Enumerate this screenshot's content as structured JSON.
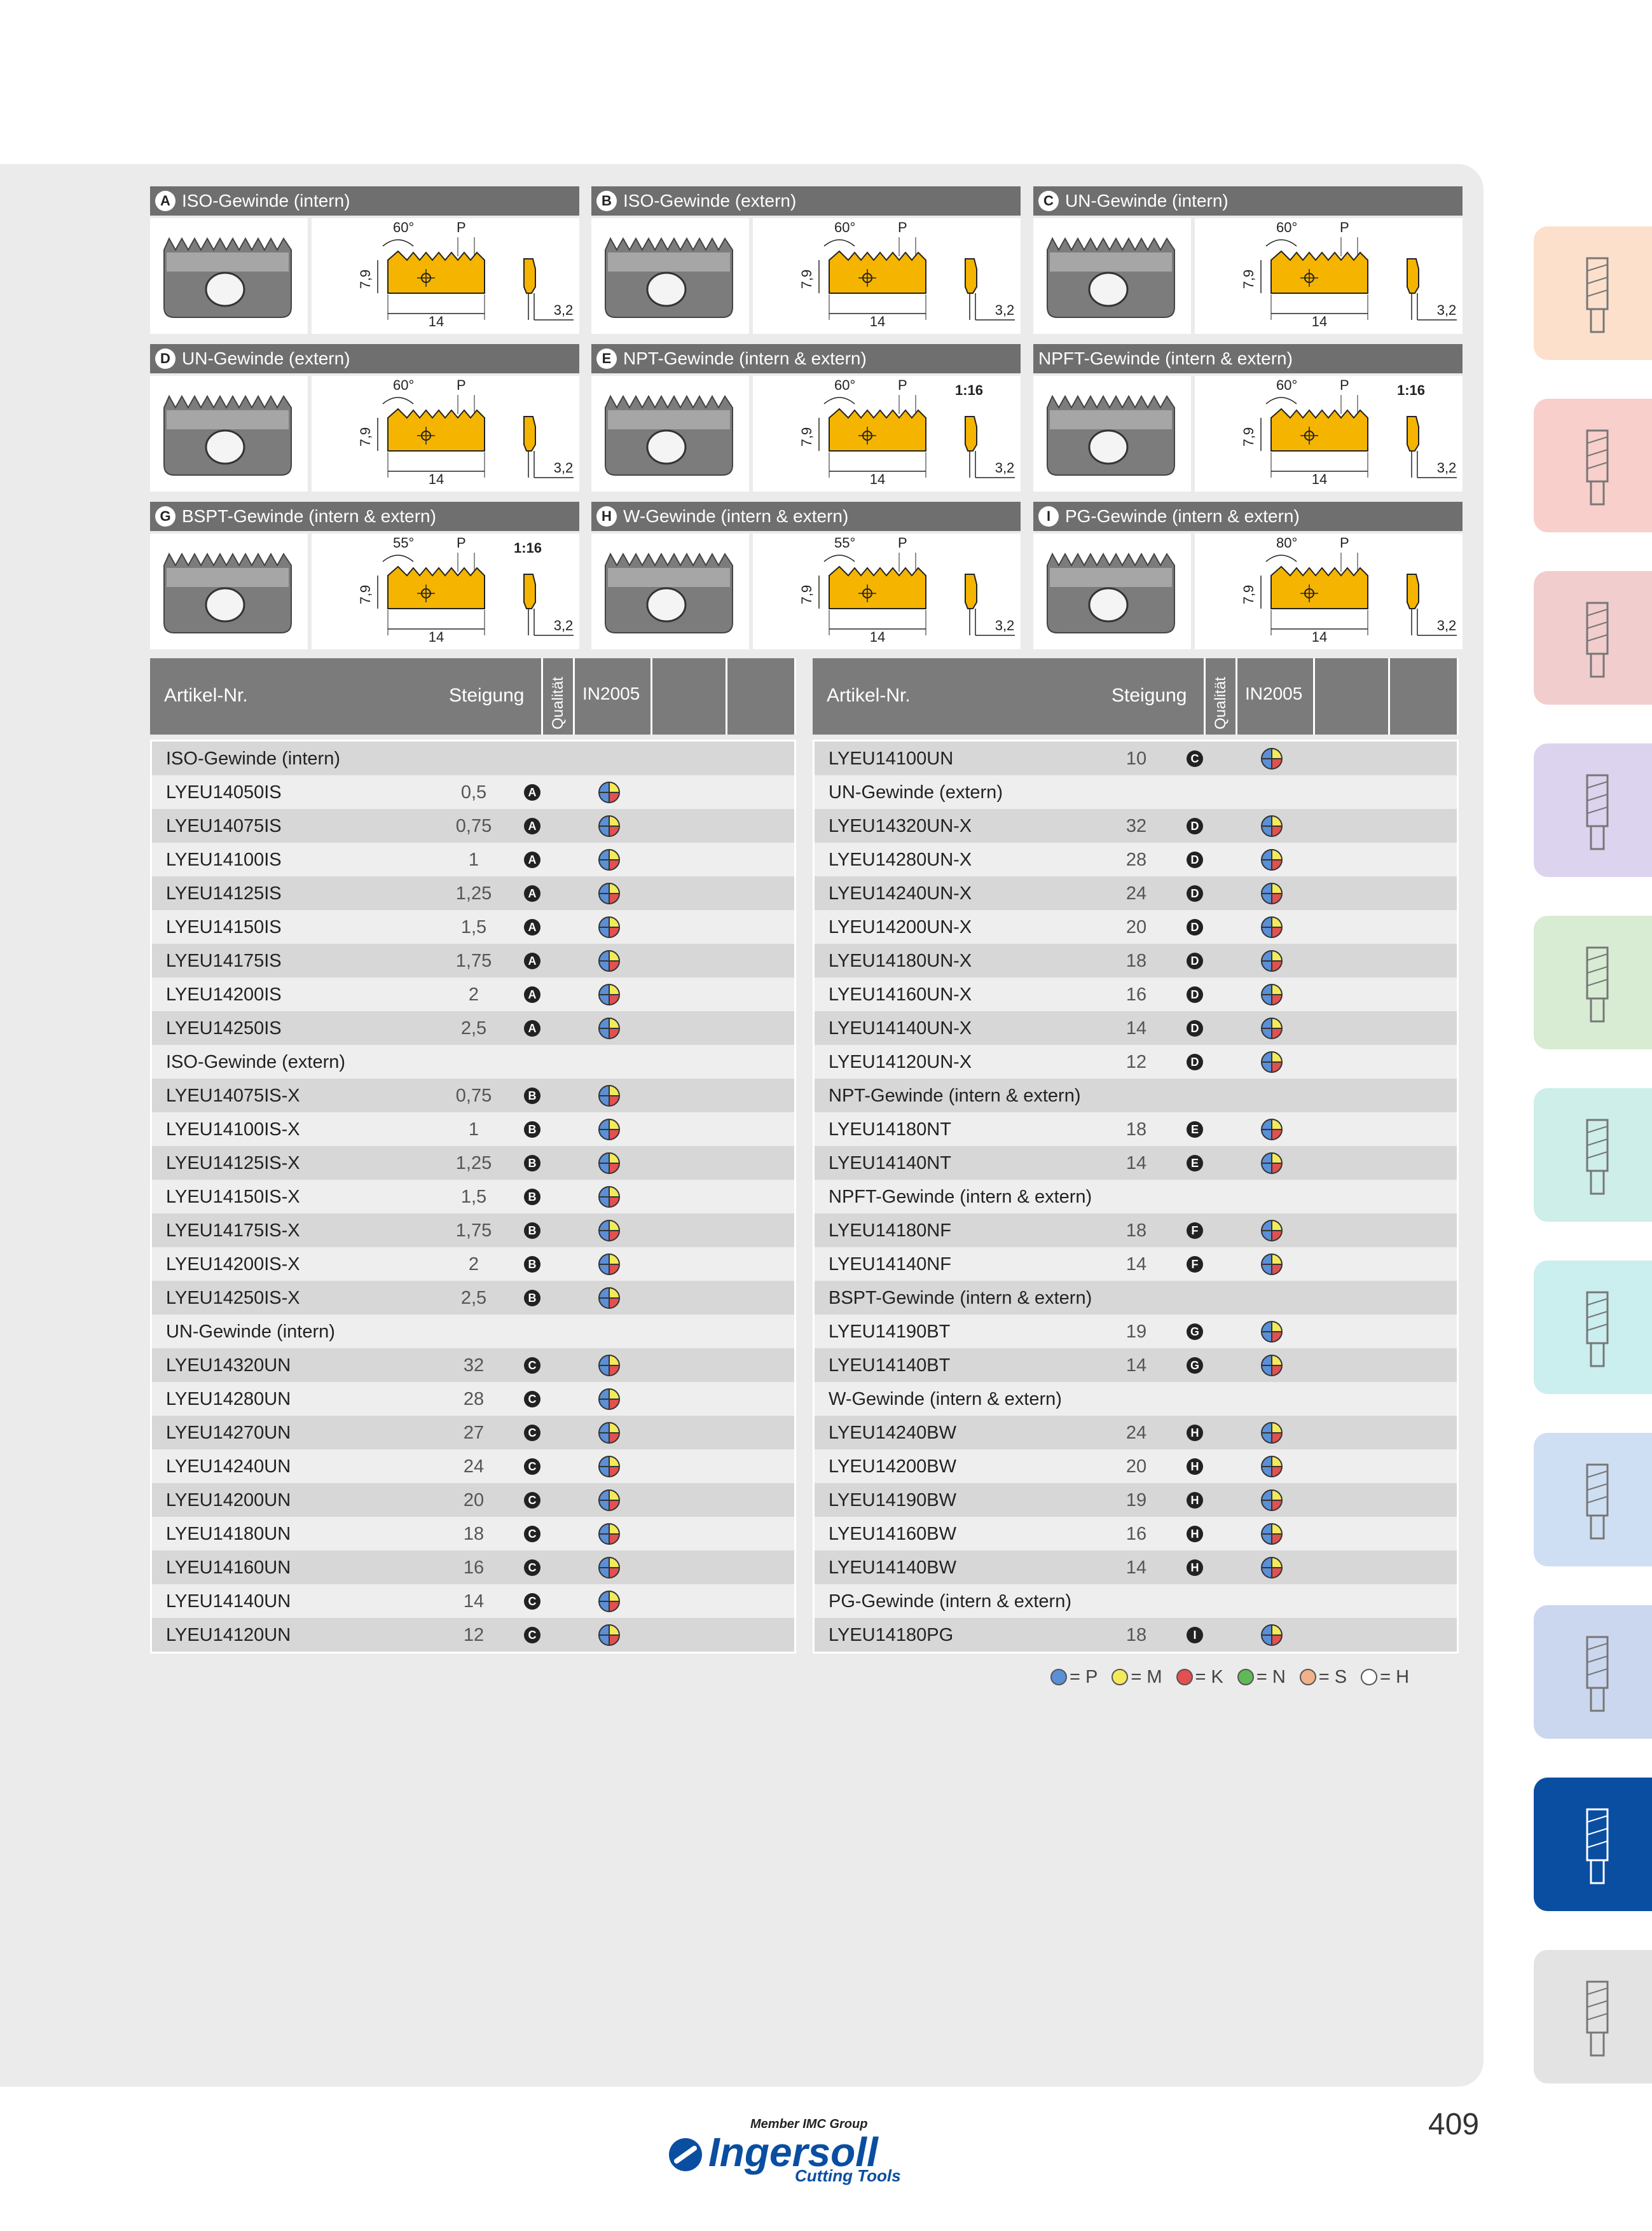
{
  "profiles": [
    {
      "letter": "A",
      "title": "ISO-Gewinde (intern)",
      "angle": "60°",
      "pitch": "P",
      "ratio": "",
      "h": "7,9",
      "w": "14",
      "t": "3,2"
    },
    {
      "letter": "B",
      "title": "ISO-Gewinde (extern)",
      "angle": "60°",
      "pitch": "P",
      "ratio": "",
      "h": "7,9",
      "w": "14",
      "t": "3,2"
    },
    {
      "letter": "C",
      "title": "UN-Gewinde (intern)",
      "angle": "60°",
      "pitch": "P",
      "ratio": "",
      "h": "7,9",
      "w": "14",
      "t": "3,2"
    },
    {
      "letter": "D",
      "title": "UN-Gewinde (extern)",
      "angle": "60°",
      "pitch": "P",
      "ratio": "",
      "h": "7,9",
      "w": "14",
      "t": "3,2"
    },
    {
      "letter": "E",
      "title": "NPT-Gewinde (intern & extern)",
      "angle": "60°",
      "pitch": "P",
      "ratio": "1:16",
      "h": "7,9",
      "w": "14",
      "t": "3,2"
    },
    {
      "letter": "",
      "title": "NPFT-Gewinde (intern & extern)",
      "angle": "60°",
      "pitch": "P",
      "ratio": "1:16",
      "h": "7,9",
      "w": "14",
      "t": "3,2"
    },
    {
      "letter": "G",
      "title": "BSPT-Gewinde (intern & extern)",
      "angle": "55°",
      "pitch": "P",
      "ratio": "1:16",
      "h": "7,9",
      "w": "14",
      "t": "3,2"
    },
    {
      "letter": "H",
      "title": "W-Gewinde (intern & extern)",
      "angle": "55°",
      "pitch": "P",
      "ratio": "",
      "h": "7,9",
      "w": "14",
      "t": "3,2"
    },
    {
      "letter": "I",
      "title": "PG-Gewinde (intern & extern)",
      "angle": "80°",
      "pitch": "P",
      "ratio": "",
      "h": "7,9",
      "w": "14",
      "t": "3,2"
    }
  ],
  "table_header": {
    "artikel": "Artikel-Nr.",
    "steigung": "Steigung",
    "qualitaet": "Qualität",
    "grade": "IN2005"
  },
  "left_rows": [
    {
      "type": "group",
      "label": "ISO-Gewinde (intern)"
    },
    {
      "art": "LYEU14050IS",
      "st": "0,5",
      "q": "A"
    },
    {
      "art": "LYEU14075IS",
      "st": "0,75",
      "q": "A"
    },
    {
      "art": "LYEU14100IS",
      "st": "1",
      "q": "A"
    },
    {
      "art": "LYEU14125IS",
      "st": "1,25",
      "q": "A"
    },
    {
      "art": "LYEU14150IS",
      "st": "1,5",
      "q": "A"
    },
    {
      "art": "LYEU14175IS",
      "st": "1,75",
      "q": "A"
    },
    {
      "art": "LYEU14200IS",
      "st": "2",
      "q": "A"
    },
    {
      "art": "LYEU14250IS",
      "st": "2,5",
      "q": "A"
    },
    {
      "type": "group",
      "label": "ISO-Gewinde (extern)"
    },
    {
      "art": "LYEU14075IS-X",
      "st": "0,75",
      "q": "B"
    },
    {
      "art": "LYEU14100IS-X",
      "st": "1",
      "q": "B"
    },
    {
      "art": "LYEU14125IS-X",
      "st": "1,25",
      "q": "B"
    },
    {
      "art": "LYEU14150IS-X",
      "st": "1,5",
      "q": "B"
    },
    {
      "art": "LYEU14175IS-X",
      "st": "1,75",
      "q": "B"
    },
    {
      "art": "LYEU14200IS-X",
      "st": "2",
      "q": "B"
    },
    {
      "art": "LYEU14250IS-X",
      "st": "2,5",
      "q": "B"
    },
    {
      "type": "group",
      "label": "UN-Gewinde (intern)"
    },
    {
      "art": "LYEU14320UN",
      "st": "32",
      "q": "C"
    },
    {
      "art": "LYEU14280UN",
      "st": "28",
      "q": "C"
    },
    {
      "art": "LYEU14270UN",
      "st": "27",
      "q": "C"
    },
    {
      "art": "LYEU14240UN",
      "st": "24",
      "q": "C"
    },
    {
      "art": "LYEU14200UN",
      "st": "20",
      "q": "C"
    },
    {
      "art": "LYEU14180UN",
      "st": "18",
      "q": "C"
    },
    {
      "art": "LYEU14160UN",
      "st": "16",
      "q": "C"
    },
    {
      "art": "LYEU14140UN",
      "st": "14",
      "q": "C"
    },
    {
      "art": "LYEU14120UN",
      "st": "12",
      "q": "C"
    }
  ],
  "right_rows": [
    {
      "art": "LYEU14100UN",
      "st": "10",
      "q": "C"
    },
    {
      "type": "group",
      "label": "UN-Gewinde (extern)"
    },
    {
      "art": "LYEU14320UN-X",
      "st": "32",
      "q": "D"
    },
    {
      "art": "LYEU14280UN-X",
      "st": "28",
      "q": "D"
    },
    {
      "art": "LYEU14240UN-X",
      "st": "24",
      "q": "D"
    },
    {
      "art": "LYEU14200UN-X",
      "st": "20",
      "q": "D"
    },
    {
      "art": "LYEU14180UN-X",
      "st": "18",
      "q": "D"
    },
    {
      "art": "LYEU14160UN-X",
      "st": "16",
      "q": "D"
    },
    {
      "art": "LYEU14140UN-X",
      "st": "14",
      "q": "D"
    },
    {
      "art": "LYEU14120UN-X",
      "st": "12",
      "q": "D"
    },
    {
      "type": "group",
      "label": "NPT-Gewinde (intern & extern)"
    },
    {
      "art": "LYEU14180NT",
      "st": "18",
      "q": "E"
    },
    {
      "art": "LYEU14140NT",
      "st": "14",
      "q": "E"
    },
    {
      "type": "group",
      "label": "NPFT-Gewinde (intern & extern)"
    },
    {
      "art": "LYEU14180NF",
      "st": "18",
      "q": "F"
    },
    {
      "art": "LYEU14140NF",
      "st": "14",
      "q": "F"
    },
    {
      "type": "group",
      "label": "BSPT-Gewinde (intern & extern)"
    },
    {
      "art": "LYEU14190BT",
      "st": "19",
      "q": "G"
    },
    {
      "art": "LYEU14140BT",
      "st": "14",
      "q": "G"
    },
    {
      "type": "group",
      "label": "W-Gewinde (intern & extern)"
    },
    {
      "art": "LYEU14240BW",
      "st": "24",
      "q": "H"
    },
    {
      "art": "LYEU14200BW",
      "st": "20",
      "q": "H"
    },
    {
      "art": "LYEU14190BW",
      "st": "19",
      "q": "H"
    },
    {
      "art": "LYEU14160BW",
      "st": "16",
      "q": "H"
    },
    {
      "art": "LYEU14140BW",
      "st": "14",
      "q": "H"
    },
    {
      "type": "group",
      "label": "PG-Gewinde (intern & extern)"
    },
    {
      "art": "LYEU14180PG",
      "st": "18",
      "q": "I"
    }
  ],
  "legend": [
    {
      "color": "#5b8fd6",
      "label": "= P"
    },
    {
      "color": "#f3ea5a",
      "label": "= M"
    },
    {
      "color": "#e2504f",
      "label": "= K"
    },
    {
      "color": "#5fb957",
      "label": "= N"
    },
    {
      "color": "#f1b28a",
      "label": "= S"
    },
    {
      "color": "#ffffff",
      "label": "= H"
    }
  ],
  "colors": {
    "insert": "#f4b400",
    "header": "#7b7b7b",
    "accent": "#0a4ea2"
  },
  "side_tabs": [
    {
      "color": "#fde0cc",
      "icon": "shell-mill-icon"
    },
    {
      "color": "#f8cfcb",
      "icon": "face-mill-icon"
    },
    {
      "color": "#f2cdcd",
      "icon": "shoulder-mill-icon"
    },
    {
      "color": "#dcd3ef",
      "icon": "helical-mill-icon"
    },
    {
      "color": "#d7ecd3",
      "icon": "slitting-saw-icon"
    },
    {
      "color": "#cdeee9",
      "icon": "boring-tool-icon"
    },
    {
      "color": "#cbeeef",
      "icon": "copy-mill-icon"
    },
    {
      "color": "#cfdff3",
      "icon": "face-mill-2-icon"
    },
    {
      "color": "#cbd7ef",
      "icon": "end-mill-icon"
    },
    {
      "color": "#0a4ea2",
      "icon": "thread-mill-icon"
    },
    {
      "color": "#e3e3e3",
      "icon": "holder-icon"
    }
  ],
  "page_number": "409",
  "logo": {
    "tagline": "Member IMC Group",
    "brand": "Ingersoll",
    "sub": "Cutting Tools"
  }
}
